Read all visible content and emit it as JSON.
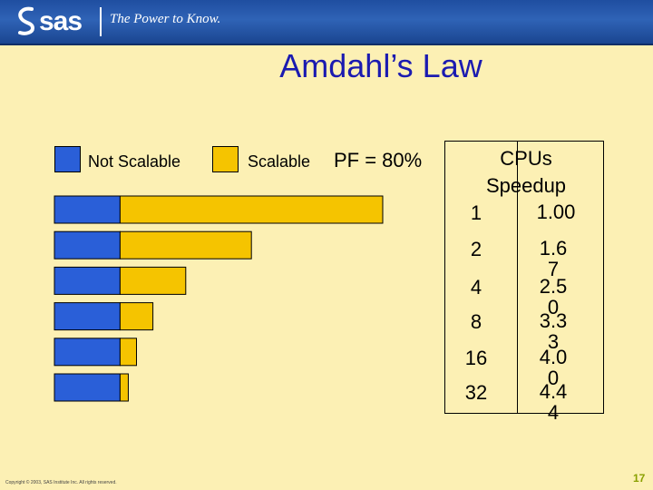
{
  "header": {
    "logo_text": "sas",
    "tagline": "The Power to Know."
  },
  "title": "Amdahl’s Law",
  "legend": [
    {
      "label": "Not Scalable",
      "color": "#2a5fd8"
    },
    {
      "label": "Scalable",
      "color": "#f5c400"
    }
  ],
  "pf_label": "PF = 80%",
  "chart_data": {
    "type": "bar",
    "orientation": "horizontal",
    "stacked": true,
    "categories": [
      "1",
      "2",
      "4",
      "8",
      "16",
      "32"
    ],
    "series": [
      {
        "name": "Not Scalable",
        "color": "#2a5fd8",
        "values": [
          0.2,
          0.2,
          0.2,
          0.2,
          0.2,
          0.2
        ]
      },
      {
        "name": "Scalable",
        "color": "#f5c400",
        "values": [
          0.8,
          0.4,
          0.2,
          0.1,
          0.05,
          0.025
        ]
      }
    ],
    "xlim": [
      0,
      1
    ],
    "grid": false,
    "legend_position": "top"
  },
  "table": {
    "headers": [
      "CPUs",
      "Speedup"
    ],
    "rows": [
      {
        "cpus": "1",
        "speedup": "1.00"
      },
      {
        "cpus": "2",
        "speedup": "1.67"
      },
      {
        "cpus": "4",
        "speedup": "2.50"
      },
      {
        "cpus": "8",
        "speedup": "3.33"
      },
      {
        "cpus": "16",
        "speedup": "4.00"
      },
      {
        "cpus": "32",
        "speedup": "4.44"
      }
    ]
  },
  "footer": {
    "copyright": "Copyright © 2003, SAS Institute Inc. All rights reserved.",
    "page_number": "17"
  }
}
